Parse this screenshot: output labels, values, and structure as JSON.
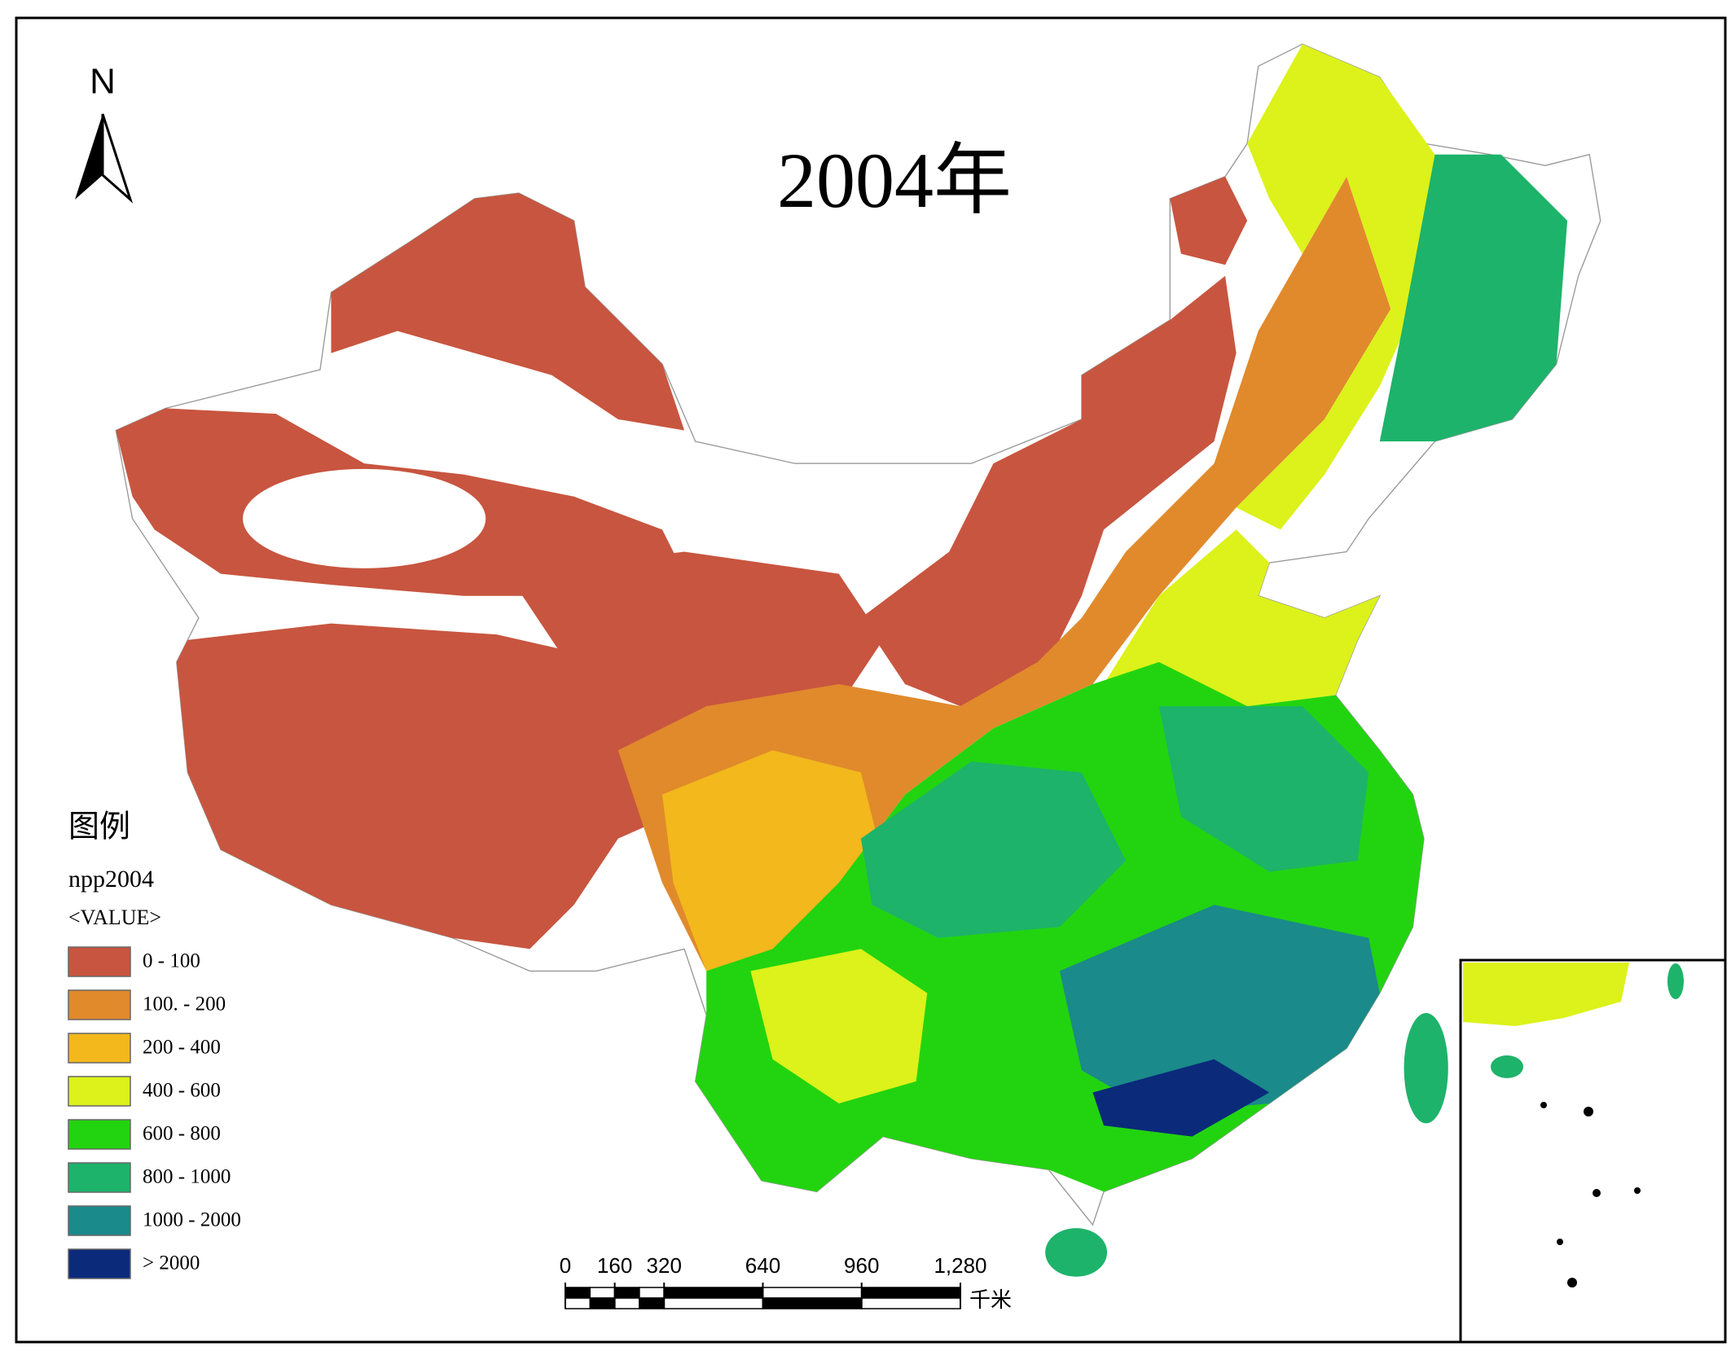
{
  "title": "2004年",
  "north_arrow": {
    "label": "N"
  },
  "legend": {
    "title": "图例",
    "layer": "npp2004",
    "field": "<VALUE>",
    "items": [
      {
        "label": "0 - 100",
        "color": "#c8553f"
      },
      {
        "label": "100. - 200",
        "color": "#e08a2c"
      },
      {
        "label": "200 - 400",
        "color": "#f2b81c"
      },
      {
        "label": "400 - 600",
        "color": "#dcf21a"
      },
      {
        "label": "600 - 800",
        "color": "#22d40f"
      },
      {
        "label": "800 - 1000",
        "color": "#1db36a"
      },
      {
        "label": "1000 - 2000",
        "color": "#1a8a8a"
      },
      {
        "label": "> 2000",
        "color": "#0b2a7a"
      }
    ]
  },
  "scale_bar": {
    "ticks": [
      0,
      160,
      320,
      640,
      960,
      {
        "value": 1280,
        "label": "1,280"
      }
    ],
    "unit": "千米"
  }
}
